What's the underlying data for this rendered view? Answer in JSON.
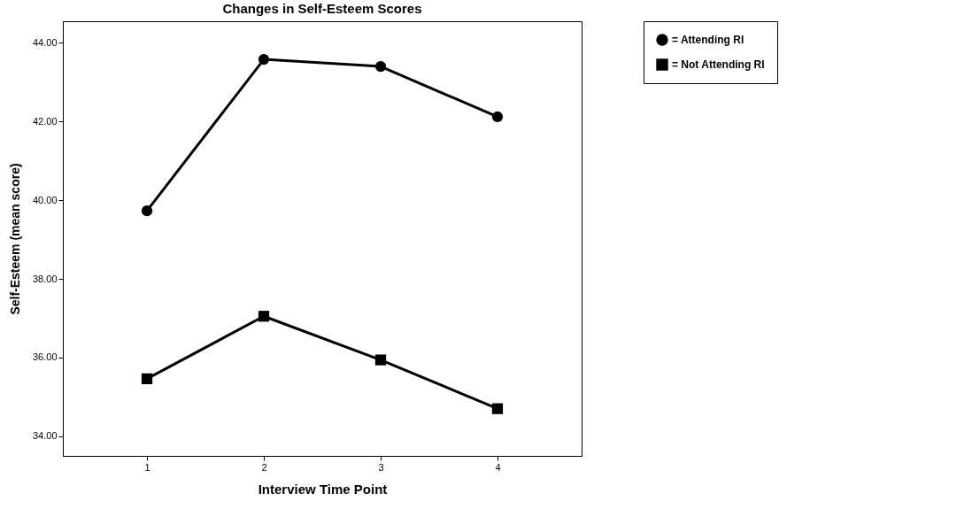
{
  "chart_data": {
    "type": "line",
    "title": "Changes in Self-Esteem Scores",
    "xlabel": "Interview Time Point",
    "ylabel": "Self-Esteem (mean score)",
    "categories": [
      "1",
      "2",
      "3",
      "4"
    ],
    "series": [
      {
        "name": "= Attending RI",
        "color": "#000000",
        "marker": "circle",
        "values": [
          39.73,
          43.58,
          43.4,
          42.12
        ]
      },
      {
        "name": "= Not Attending RI",
        "color": "#000000",
        "marker": "square",
        "values": [
          35.46,
          37.05,
          35.94,
          34.7
        ]
      }
    ],
    "ylim": [
      33.5,
      44.55
    ],
    "yticks": [
      {
        "value": 34,
        "label": "34.00"
      },
      {
        "value": 36,
        "label": "36.00"
      },
      {
        "value": 38,
        "label": "38.00"
      },
      {
        "value": 40,
        "label": "40.00"
      },
      {
        "value": 42,
        "label": "42.00"
      },
      {
        "value": 44,
        "label": "44.00"
      }
    ],
    "grid": false,
    "legend": "top right",
    "line_style": "solid"
  }
}
